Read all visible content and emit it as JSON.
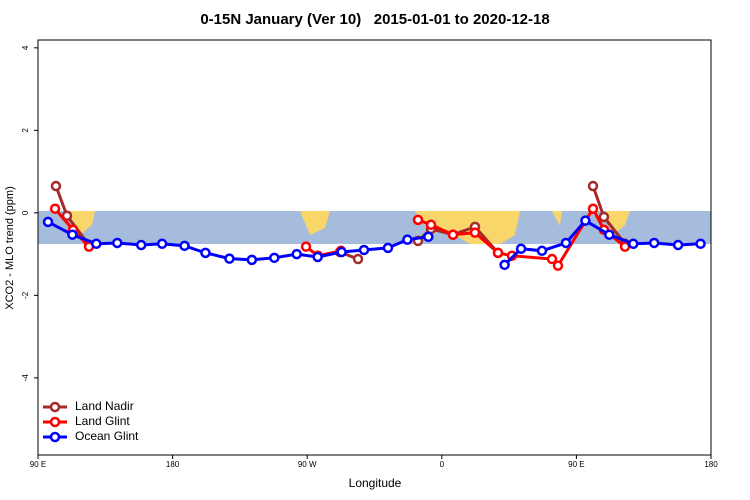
{
  "chart_data": {
    "type": "line",
    "title": "0-15N January (Ver 10)   2015-01-01 to 2020-12-18",
    "x_label": "Longitude",
    "y_label": "XCO2 - MLO trend (ppm)",
    "xlim": [
      90,
      540
    ],
    "ylim": [
      -5.87,
      4.19
    ],
    "xticks": [
      {
        "value": 90,
        "label": "90 E"
      },
      180,
      {
        "value": 270,
        "label": "90 W"
      },
      {
        "value": 360,
        "label": "0"
      },
      {
        "value": 450,
        "label": "90 E"
      },
      {
        "value": 540,
        "label": "180"
      }
    ],
    "yticks": [
      -4,
      -2,
      0,
      2,
      4
    ],
    "legend": "bottom-left",
    "series": [
      {
        "name": "Land Nadir",
        "color": "#a52a2a",
        "x": [
          102,
          109.4,
          124.1,
          null,
          291.9,
          304,
          null,
          344.1,
          352.8,
          367.5,
          382.2,
          397.6,
          null,
          461.1,
          468.4,
          482.5
        ],
        "values": [
          0.65,
          -0.07,
          -0.78,
          null,
          -0.95,
          -1.12,
          null,
          -0.68,
          -0.39,
          -0.53,
          -0.34,
          -0.97,
          null,
          0.65,
          -0.1,
          -0.75
        ]
      },
      {
        "name": "Land Glint",
        "color": "#ff0000",
        "x": [
          101.4,
          113.4,
          124.1,
          null,
          269.2,
          277.2,
          292.6,
          null,
          344.1,
          352.8,
          367.5,
          382.2,
          397.6,
          406.9,
          433.7,
          437.7,
          461.1,
          468.4,
          482.5
        ],
        "values": [
          0.1,
          -0.41,
          -0.82,
          null,
          -0.82,
          -1.04,
          -0.92,
          null,
          -0.17,
          -0.29,
          -0.53,
          -0.48,
          -0.97,
          -1.04,
          -1.12,
          -1.28,
          0.1,
          -0.41,
          -0.82
        ]
      },
      {
        "name": "Ocean Glint",
        "color": "#0000ff",
        "x": [
          96.7,
          113,
          129,
          143,
          159,
          173,
          188,
          202,
          218,
          233,
          248,
          263,
          277,
          293,
          308,
          324,
          337,
          351,
          null,
          402,
          413,
          427,
          443,
          456,
          472,
          488,
          502,
          518,
          533
        ],
        "values": [
          -0.22,
          -0.53,
          -0.75,
          -0.73,
          -0.78,
          -0.75,
          -0.8,
          -0.97,
          -1.11,
          -1.14,
          -1.09,
          -1.0,
          -1.07,
          -0.95,
          -0.9,
          -0.85,
          -0.65,
          -0.58,
          null,
          -1.26,
          -0.87,
          -0.92,
          -0.73,
          -0.19,
          -0.53,
          -0.75,
          -0.73,
          -0.78,
          -0.75
        ]
      }
    ]
  }
}
